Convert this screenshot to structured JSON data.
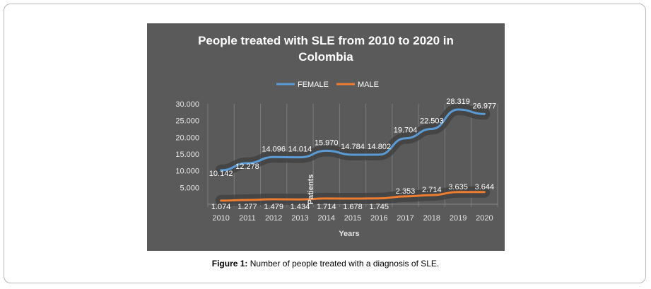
{
  "caption": {
    "label": "Figure 1:",
    "text": " Number of people treated with a diagnosis of SLE."
  },
  "chart_data": {
    "type": "line",
    "title_line1": "People treated with SLE from 2010 to 2020 in",
    "title_line2": "Colombia",
    "xlabel": "Years",
    "ylabel": "Patients",
    "categories": [
      "2010",
      "2011",
      "2012",
      "2013",
      "2014",
      "2015",
      "2016",
      "2017",
      "2018",
      "2019",
      "2020"
    ],
    "y_ticks": [
      "30.000",
      "25.000",
      "20.000",
      "15.000",
      "10.000",
      "5.000"
    ],
    "y_tick_values": [
      30000,
      25000,
      20000,
      15000,
      10000,
      5000
    ],
    "ylim": [
      0,
      30000
    ],
    "legend_position": "top-center",
    "grid": "vertical",
    "series": [
      {
        "name": "FEMALE",
        "color": "#5b9bd5",
        "values": [
          10142,
          12278,
          14096,
          14014,
          15970,
          14784,
          14802,
          19704,
          22503,
          28319,
          26977
        ],
        "labels": [
          "10.142",
          "12.278",
          "14.096",
          "14.014",
          "15.970",
          "14.784",
          "14.802",
          "19.704",
          "22.503",
          "28.319",
          "26.977"
        ]
      },
      {
        "name": "MALE",
        "color": "#ed7d31",
        "values": [
          1074,
          1277,
          1479,
          1434,
          1714,
          1678,
          1745,
          2353,
          2714,
          3635,
          3644
        ],
        "labels": [
          "1.074",
          "1.277",
          "1.479",
          "1.434",
          "1.714",
          "1.678",
          "1.745",
          "2.353",
          "2.714",
          "3.635",
          "3.644"
        ]
      }
    ],
    "colors": {
      "panel_bg": "#5a5a5a",
      "text": "#ffffff",
      "tick_text": "#e6e6e6"
    }
  }
}
